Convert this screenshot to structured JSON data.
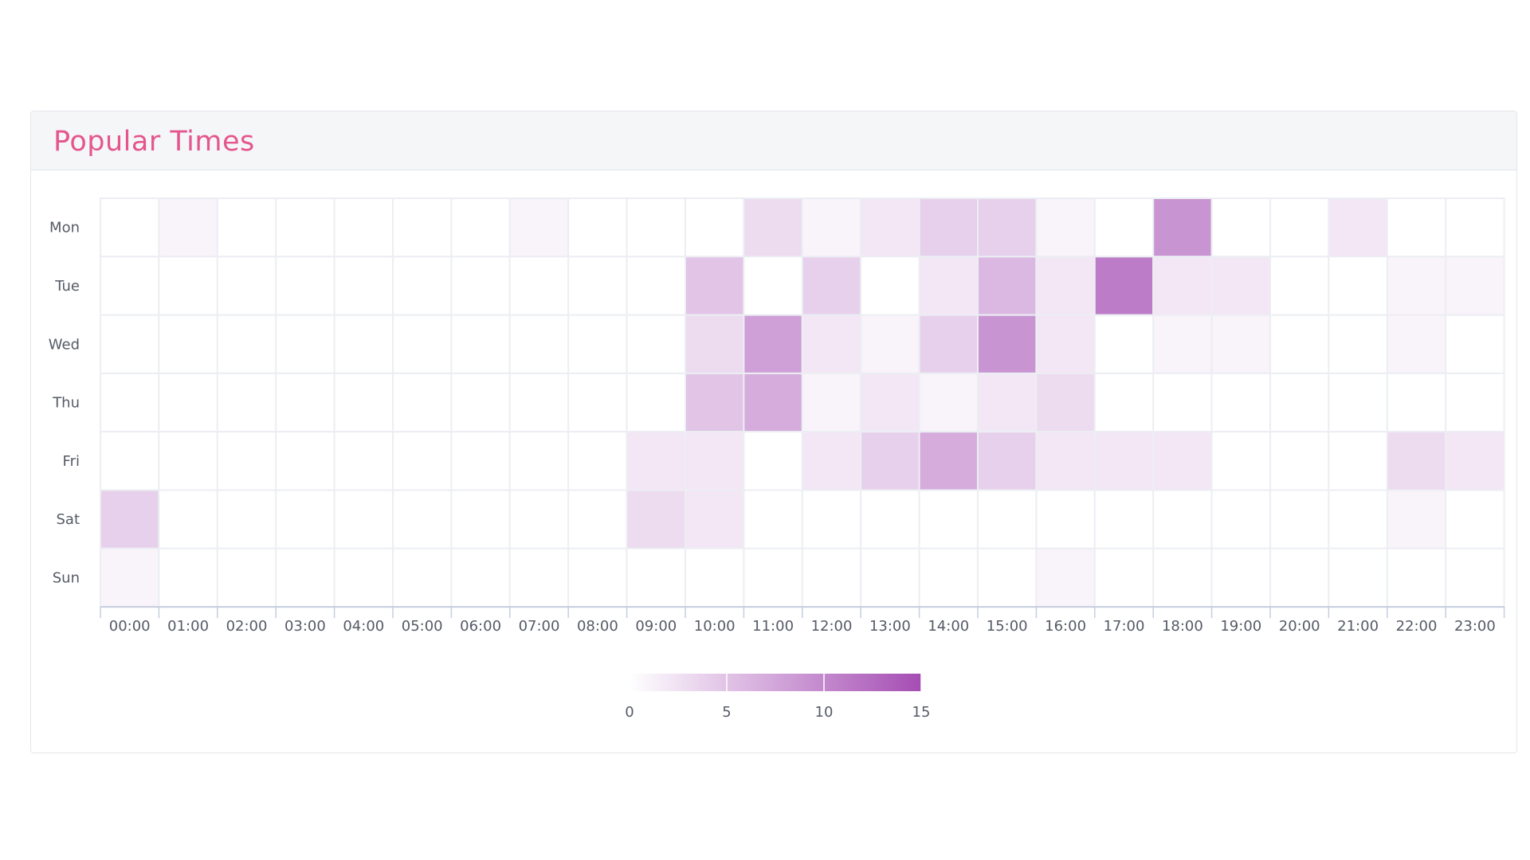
{
  "card": {
    "title": "Popular Times"
  },
  "chart_data": {
    "type": "heatmap",
    "title": "Popular Times",
    "x_categories": [
      "00:00",
      "01:00",
      "02:00",
      "03:00",
      "04:00",
      "05:00",
      "06:00",
      "07:00",
      "08:00",
      "09:00",
      "10:00",
      "11:00",
      "12:00",
      "13:00",
      "14:00",
      "15:00",
      "16:00",
      "17:00",
      "18:00",
      "19:00",
      "20:00",
      "21:00",
      "22:00",
      "23:00"
    ],
    "y_categories": [
      "Mon",
      "Tue",
      "Wed",
      "Thu",
      "Fri",
      "Sat",
      "Sun"
    ],
    "values": [
      [
        0,
        1,
        0,
        0,
        0,
        0,
        0,
        1,
        0,
        0,
        0,
        3,
        1,
        2,
        4,
        4,
        1,
        0,
        9,
        0,
        0,
        2,
        0,
        0
      ],
      [
        0,
        0,
        0,
        0,
        0,
        0,
        0,
        0,
        0,
        0,
        5,
        0,
        4,
        0,
        2,
        6,
        2,
        11,
        2,
        2,
        0,
        0,
        1,
        1
      ],
      [
        0,
        0,
        0,
        0,
        0,
        0,
        0,
        0,
        0,
        0,
        3,
        8,
        2,
        1,
        4,
        9,
        2,
        0,
        1,
        1,
        0,
        0,
        1,
        0
      ],
      [
        0,
        0,
        0,
        0,
        0,
        0,
        0,
        0,
        0,
        0,
        5,
        7,
        1,
        2,
        1,
        2,
        3,
        0,
        0,
        0,
        0,
        0,
        0,
        0
      ],
      [
        0,
        0,
        0,
        0,
        0,
        0,
        0,
        0,
        0,
        2,
        2,
        0,
        2,
        4,
        7,
        4,
        2,
        2,
        2,
        0,
        0,
        0,
        3,
        2
      ],
      [
        4,
        0,
        0,
        0,
        0,
        0,
        0,
        0,
        0,
        3,
        2,
        0,
        0,
        0,
        0,
        0,
        0,
        0,
        0,
        0,
        0,
        0,
        1,
        0
      ],
      [
        1,
        0,
        0,
        0,
        0,
        0,
        0,
        0,
        0,
        0,
        0,
        0,
        0,
        0,
        0,
        0,
        1,
        0,
        0,
        0,
        0,
        0,
        0,
        0
      ]
    ],
    "color_range": [
      0,
      15
    ],
    "colors": {
      "low": "#ffffff",
      "high": "#a54db4"
    },
    "legend": {
      "position": "bottom-center",
      "ticks": [
        0,
        5,
        10,
        15
      ]
    }
  }
}
